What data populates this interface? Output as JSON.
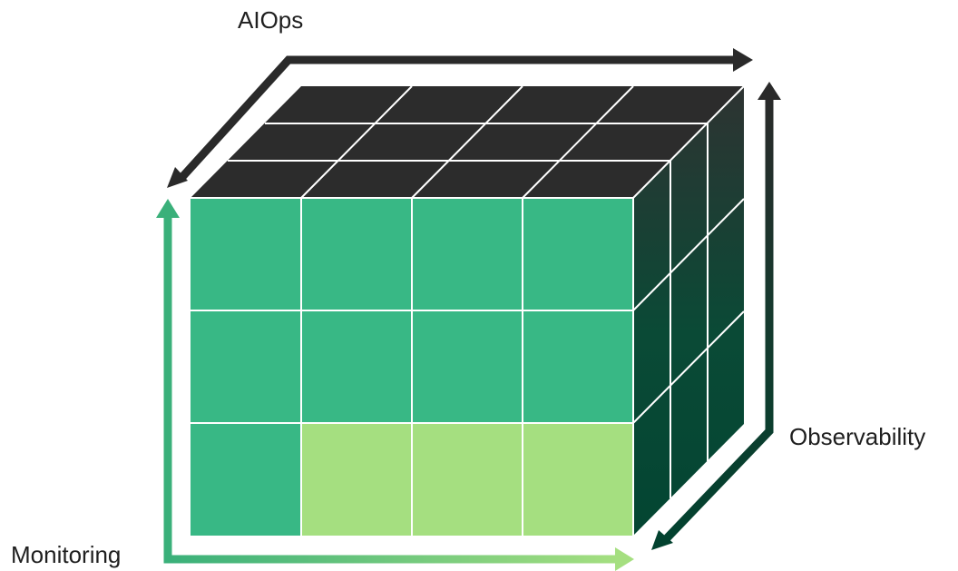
{
  "labels": {
    "top_axis": "AIOps",
    "right_axis": "Observability",
    "bottom_axis": "Monitoring"
  },
  "colors": {
    "top_face": "#2c2c2c",
    "front_green": "#38b885",
    "front_light_green": "#a5df80",
    "side_dark_top": "#2e3332",
    "side_dark_bottom": "#034532",
    "grid_line": "#ffffff",
    "arrow_dark": "#2a2a2a",
    "arrow_dark_green": "#02422f",
    "arrow_green_start": "#3ab07a",
    "arrow_green_end": "#a5df80",
    "text": "#1f1f1f"
  },
  "icons": {
    "top_arrow": "bent-double-arrow",
    "right_arrow": "bent-double-arrow",
    "bottom_arrow": "bent-double-arrow"
  },
  "cube": {
    "front_grid": {
      "rows": 3,
      "cols": 4,
      "light_cells": [
        [
          2,
          1
        ],
        [
          2,
          2
        ],
        [
          2,
          3
        ]
      ]
    },
    "top_grid": {
      "rows": 3,
      "cols": 4
    },
    "side_grid": {
      "rows": 3,
      "cols": 3
    }
  }
}
